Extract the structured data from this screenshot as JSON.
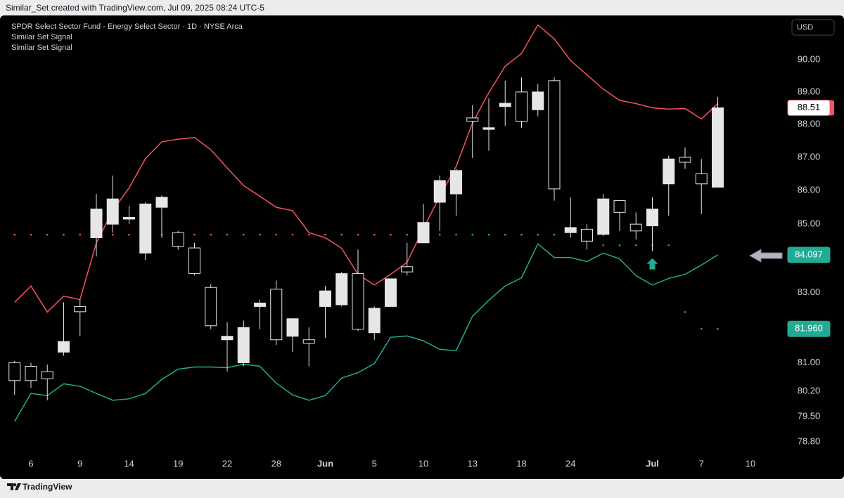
{
  "chart_data": {
    "type": "candlestick",
    "header": "Similar_Set created with TradingView.com, Jul 09, 2025 08:24 UTC-5",
    "legend": [
      "SPDR Select Sector Fund - Energy Select Sector · 1D · NYSE Arca",
      "Similar Set Signal",
      "Similar Set Signal"
    ],
    "currency": "USD",
    "brand": "TradingView",
    "log_scale": true,
    "grid": false,
    "up_color": "#e6e6e6",
    "down_color": "#000000",
    "wick_color": "#e6e6e6",
    "categories": [
      null,
      "6",
      null,
      null,
      "9",
      null,
      null,
      "14",
      null,
      null,
      "19",
      null,
      null,
      "22",
      null,
      null,
      "28",
      null,
      null,
      "Jun",
      null,
      null,
      "5",
      null,
      null,
      "10",
      null,
      null,
      "13",
      null,
      null,
      "18",
      null,
      null,
      "24",
      null,
      null,
      null,
      null,
      "Jul",
      null,
      null,
      "7",
      null,
      null,
      "10"
    ],
    "open": [
      81.0,
      80.9,
      80.75,
      81.3,
      82.6,
      84.6,
      85.0,
      85.15,
      84.15,
      85.5,
      84.75,
      84.3,
      83.15,
      81.65,
      81.0,
      82.6,
      83.1,
      81.75,
      81.65,
      82.6,
      82.65,
      83.55,
      81.85,
      82.6,
      83.75,
      84.45,
      85.65,
      85.9,
      88.2,
      87.85,
      88.55,
      89.0,
      88.45,
      89.35,
      84.75,
      84.85,
      84.7,
      85.7,
      85.0,
      84.95,
      86.2,
      87.0,
      86.5,
      86.1,
      null,
      null
    ],
    "high": [
      81.05,
      81.0,
      80.95,
      82.72,
      82.8,
      85.9,
      86.45,
      85.55,
      85.65,
      85.85,
      84.8,
      84.45,
      83.25,
      82.15,
      82.2,
      82.8,
      83.35,
      82.25,
      82.0,
      83.2,
      83.6,
      84.25,
      82.6,
      83.4,
      84.45,
      85.6,
      86.45,
      86.65,
      88.6,
      88.8,
      89.35,
      89.45,
      89.25,
      89.45,
      85.8,
      85.0,
      85.9,
      85.7,
      85.35,
      85.8,
      87.05,
      87.3,
      86.95,
      88.85,
      null,
      null
    ],
    "low": [
      80.1,
      80.3,
      79.95,
      81.2,
      81.75,
      84.05,
      84.75,
      85.0,
      83.95,
      84.6,
      84.25,
      83.5,
      81.95,
      80.75,
      80.9,
      81.95,
      81.5,
      81.3,
      80.9,
      81.7,
      82.6,
      81.9,
      81.65,
      82.6,
      83.5,
      84.45,
      84.8,
      85.25,
      86.98,
      87.2,
      87.95,
      87.9,
      88.25,
      85.7,
      84.6,
      84.25,
      84.65,
      84.8,
      84.55,
      84.2,
      85.25,
      86.65,
      85.3,
      86.1,
      null,
      null
    ],
    "close": [
      80.5,
      80.5,
      80.55,
      81.6,
      82.45,
      85.45,
      85.75,
      85.2,
      85.6,
      85.8,
      84.35,
      83.55,
      82.05,
      81.75,
      82.0,
      82.7,
      81.65,
      82.25,
      81.55,
      83.05,
      83.55,
      81.95,
      82.55,
      83.4,
      83.6,
      85.05,
      86.3,
      86.6,
      88.1,
      87.9,
      88.65,
      88.1,
      89.0,
      86.05,
      84.9,
      84.5,
      85.75,
      85.35,
      84.8,
      85.45,
      86.95,
      86.85,
      86.2,
      88.51,
      null,
      null
    ],
    "series": [
      {
        "kind": "line",
        "color": "#f7525f",
        "values": [
          82.72,
          83.19,
          82.44,
          82.9,
          82.8,
          84.45,
          85.4,
          86.08,
          86.96,
          87.47,
          87.55,
          87.6,
          87.23,
          86.68,
          86.15,
          85.83,
          85.5,
          85.4,
          84.75,
          84.6,
          84.29,
          83.53,
          83.22,
          83.53,
          83.88,
          84.87,
          85.83,
          86.72,
          88.04,
          88.98,
          89.8,
          90.2,
          91.1,
          90.66,
          89.98,
          89.53,
          89.09,
          88.74,
          88.64,
          88.51,
          88.47,
          88.49,
          88.17,
          88.64,
          null,
          null
        ]
      },
      {
        "kind": "line",
        "color": "#22ab94",
        "price_label": true,
        "values": [
          79.36,
          80.14,
          80.08,
          80.41,
          80.34,
          80.14,
          79.95,
          79.99,
          80.14,
          80.53,
          80.82,
          80.88,
          80.88,
          80.86,
          80.96,
          80.9,
          80.43,
          80.1,
          79.95,
          80.08,
          80.57,
          80.72,
          80.98,
          81.72,
          81.76,
          81.62,
          81.38,
          81.34,
          82.32,
          82.78,
          83.19,
          83.43,
          84.42,
          84.02,
          84.02,
          83.9,
          84.15,
          83.98,
          83.49,
          83.22,
          83.41,
          83.53,
          83.8,
          84.097,
          null,
          null
        ]
      },
      {
        "kind": "dots",
        "color": "#f7525f",
        "values": [
          84.69,
          84.69,
          84.69,
          84.69,
          84.69,
          84.69,
          84.69,
          84.69,
          84.69,
          84.69,
          84.69,
          84.69,
          84.69,
          84.69,
          84.69,
          84.69,
          84.69,
          84.69,
          84.69,
          84.69,
          84.69,
          84.69,
          84.69,
          84.69,
          84.69,
          null,
          null,
          null,
          null,
          null,
          null,
          null,
          null,
          null,
          null,
          null,
          null,
          null,
          null,
          null,
          null,
          null,
          null,
          null,
          null,
          null
        ]
      },
      {
        "kind": "dots",
        "color": "#22ab94",
        "last_label": "81.960",
        "values": [
          null,
          null,
          null,
          null,
          null,
          null,
          null,
          null,
          null,
          null,
          null,
          null,
          null,
          null,
          null,
          null,
          null,
          null,
          null,
          null,
          null,
          null,
          null,
          null,
          null,
          null,
          84.69,
          84.69,
          84.69,
          84.69,
          84.69,
          84.69,
          84.69,
          84.69,
          null,
          null,
          84.38,
          84.38,
          84.38,
          84.38,
          84.38,
          82.44,
          81.96,
          81.96,
          null,
          null
        ]
      },
      {
        "kind": "arrows",
        "color": "#22ab94",
        "values": [
          null,
          null,
          null,
          null,
          null,
          null,
          null,
          null,
          null,
          null,
          null,
          null,
          null,
          null,
          null,
          null,
          null,
          null,
          null,
          null,
          null,
          null,
          null,
          null,
          null,
          null,
          null,
          null,
          null,
          null,
          null,
          null,
          null,
          null,
          null,
          null,
          null,
          null,
          null,
          84.0,
          null,
          null,
          null,
          null,
          null,
          null
        ]
      }
    ],
    "ylim": [
      78.4,
      91.4
    ],
    "yticks": [
      {
        "value": 78.8,
        "label": "78.80"
      },
      {
        "value": 79.5,
        "label": "79.50"
      },
      {
        "value": 80.2,
        "label": "80.20"
      },
      {
        "value": 81,
        "label": "81.00"
      },
      {
        "value": 83,
        "label": "83.00"
      },
      {
        "value": 85,
        "label": "85.00"
      },
      {
        "value": 86,
        "label": "86.00"
      },
      {
        "value": 87,
        "label": "87.00"
      },
      {
        "value": 88,
        "label": "88.00"
      },
      {
        "value": 89,
        "label": "89.00"
      },
      {
        "value": 90,
        "label": "90.00"
      }
    ]
  }
}
